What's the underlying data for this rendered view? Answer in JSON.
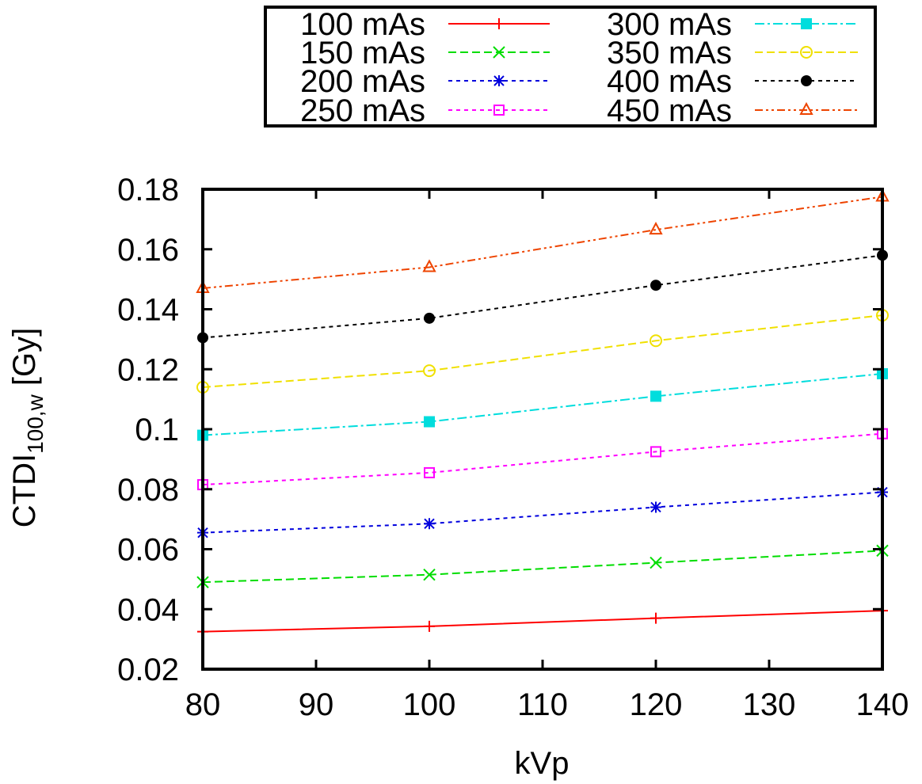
{
  "chart_data": {
    "type": "line",
    "title": "",
    "xlabel": "kVp",
    "ylabel": {
      "main": "CTDI",
      "sub": "100,w",
      "unit": " [Gy]"
    },
    "x": [
      80,
      100,
      120,
      140
    ],
    "xlim": [
      80,
      140
    ],
    "ylim": [
      0.02,
      0.18
    ],
    "xticks": [
      80,
      90,
      100,
      110,
      120,
      130,
      140
    ],
    "xtick_labels": [
      "80",
      "90",
      "100",
      "110",
      "120",
      "130",
      "140"
    ],
    "yticks": [
      0.02,
      0.04,
      0.06,
      0.08,
      0.1,
      0.12,
      0.14,
      0.16,
      0.18
    ],
    "ytick_labels": [
      "0.02",
      "0.04",
      "0.06",
      "0.08",
      "0.1",
      "0.12",
      "0.14",
      "0.16",
      "0.18"
    ],
    "grid": false,
    "legend_position": "top, outside plot",
    "series": [
      {
        "name": "100 mAs",
        "values": [
          0.0325,
          0.0343,
          0.037,
          0.0395
        ],
        "color": "#ff0000",
        "marker": "plus",
        "dash": "solid"
      },
      {
        "name": "150 mAs",
        "values": [
          0.049,
          0.0515,
          0.0555,
          0.0595
        ],
        "color": "#00dd00",
        "marker": "cross",
        "dash": "dashed"
      },
      {
        "name": "200 mAs",
        "values": [
          0.0655,
          0.0685,
          0.074,
          0.079
        ],
        "color": "#0000dd",
        "marker": "star",
        "dash": "dotted"
      },
      {
        "name": "250 mAs",
        "values": [
          0.0815,
          0.0855,
          0.0925,
          0.0985
        ],
        "color": "#ff00ff",
        "marker": "open-square",
        "dash": "dotted"
      },
      {
        "name": "300 mAs",
        "values": [
          0.098,
          0.1025,
          0.111,
          0.1185
        ],
        "color": "#00dddd",
        "marker": "filled-square",
        "dash": "dash-dot"
      },
      {
        "name": "350 mAs",
        "values": [
          0.114,
          0.1195,
          0.1295,
          0.138
        ],
        "color": "#f0e000",
        "marker": "open-circle",
        "dash": "dashed"
      },
      {
        "name": "400 mAs",
        "values": [
          0.1305,
          0.137,
          0.148,
          0.158
        ],
        "color": "#000000",
        "marker": "filled-circle",
        "dash": "dotted"
      },
      {
        "name": "450 mAs",
        "values": [
          0.147,
          0.154,
          0.1665,
          0.1775
        ],
        "color": "#ee4400",
        "marker": "open-triangle",
        "dash": "dash-dot-dot"
      }
    ]
  }
}
